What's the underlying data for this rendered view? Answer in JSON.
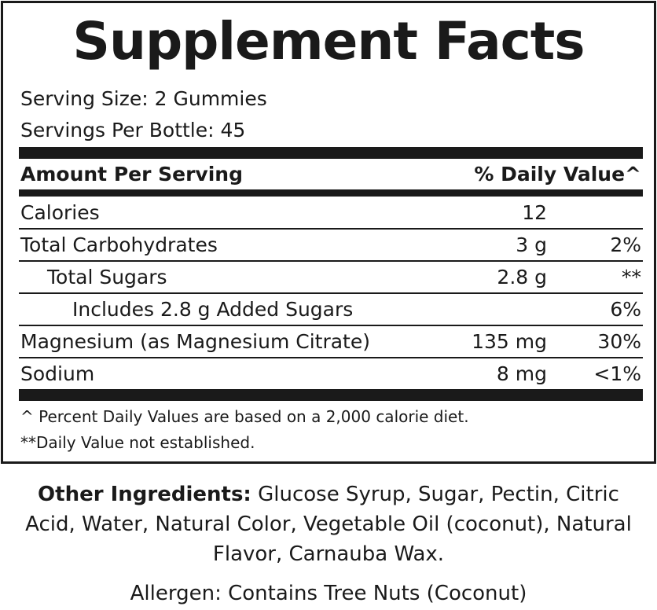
{
  "title": "Supplement Facts",
  "serving_size": "Serving Size: 2 Gummies",
  "servings_per": "Servings Per Bottle: 45",
  "header": {
    "amount": "Amount Per Serving",
    "dv": "% Daily Value^"
  },
  "rows": [
    {
      "name": "Calories",
      "amount": "12",
      "dv": ""
    },
    {
      "name": "Total Carbohydrates",
      "amount": "3 g",
      "dv": "2%"
    },
    {
      "name": "Total Sugars",
      "amount": "2.8 g",
      "dv": "**"
    },
    {
      "name": "Includes 2.8 g Added Sugars",
      "amount": "",
      "dv": "6%"
    },
    {
      "name": "Magnesium (as Magnesium Citrate)",
      "amount": "135 mg",
      "dv": "30%"
    },
    {
      "name": "Sodium",
      "amount": "8 mg",
      "dv": "<1%"
    }
  ],
  "footnotes": [
    "^ Percent Daily Values are based on a 2,000 calorie diet.",
    "**Daily Value not established."
  ],
  "other_ingredients": {
    "label": "Other Ingredients:",
    "text": " Glucose Syrup, Sugar, Pectin, Citric Acid, Water, Natural Color, Vegetable Oil (coconut), Natural Flavor, Carnauba Wax."
  },
  "allergen": "Allergen: Contains Tree Nuts (Coconut)"
}
